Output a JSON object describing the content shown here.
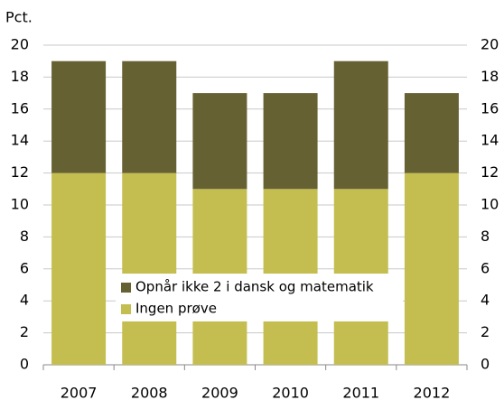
{
  "chart_data": {
    "type": "stacked_bar",
    "y_label": "Pct.",
    "categories": [
      "2007",
      "2008",
      "2009",
      "2010",
      "2011",
      "2012"
    ],
    "series": [
      {
        "name": "Ingen prøve",
        "color": "#c4be50",
        "values": [
          12,
          12,
          11,
          11,
          11,
          12
        ]
      },
      {
        "name": "Opnår ikke 2 i dansk og matematik",
        "color": "#666133",
        "values": [
          7,
          7,
          6,
          6,
          8,
          5
        ]
      }
    ],
    "ylim": [
      0,
      20
    ],
    "yticks": [
      0,
      2,
      4,
      6,
      8,
      10,
      12,
      14,
      16,
      18,
      20
    ],
    "grid": true
  }
}
